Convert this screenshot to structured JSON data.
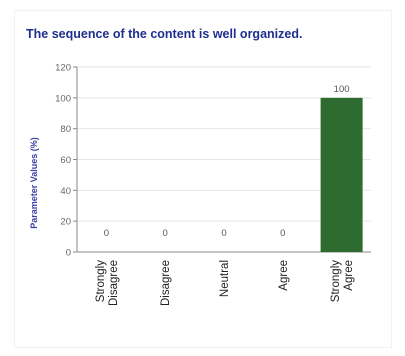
{
  "chart_data": {
    "type": "bar",
    "title": "The sequence of the content is well organized.",
    "ylabel": "Parameter Values (%)",
    "xlabel": "",
    "categories": [
      [
        "Strongly",
        "Disagree"
      ],
      [
        "Disagree"
      ],
      [
        "Neutral"
      ],
      [
        "Agree"
      ],
      [
        "Strongly",
        "Agree"
      ]
    ],
    "values": [
      0,
      0,
      0,
      0,
      100
    ],
    "ylim": [
      0,
      120
    ],
    "yticks": [
      0,
      20,
      40,
      60,
      80,
      100,
      120
    ],
    "grid": true,
    "legend": "none",
    "bar_color": "#2e6b2e",
    "grid_color": "#e6e6e6",
    "axis_color": "#888888"
  }
}
